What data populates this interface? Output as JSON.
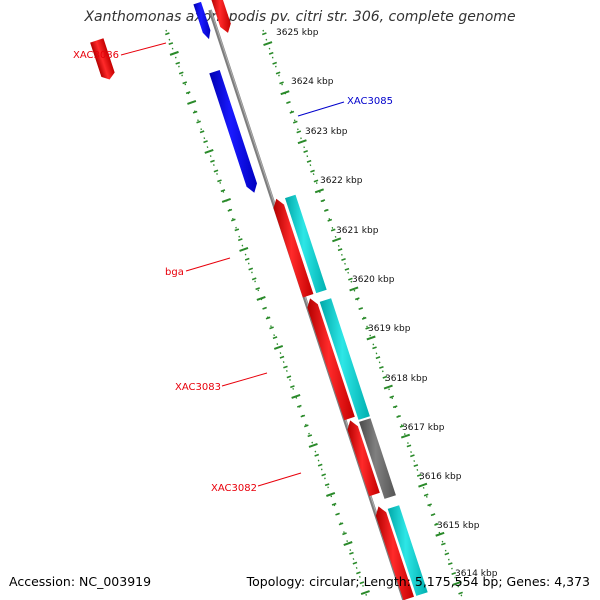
{
  "title": "Xanthomonas axonopodis pv. citri str. 306, complete genome",
  "accession": "Accession: NC_003919",
  "summary": "Topology: circular; Length: 5,175,554 bp; Genes: 4,373",
  "ticks": [
    "3625 kbp",
    "3624 kbp",
    "3623 kbp",
    "3622 kbp",
    "3621 kbp",
    "3620 kbp",
    "3619 kbp",
    "3618 kbp",
    "3617 kbp",
    "3616 kbp",
    "3615 kbp",
    "3614 kbp"
  ],
  "gene_labels": [
    {
      "text": "XAC3086",
      "color": "#e8000b"
    },
    {
      "text": "XAC3085",
      "color": "#0000cc"
    },
    {
      "text": "bga",
      "color": "#e8000b"
    },
    {
      "text": "XAC3083",
      "color": "#e8000b"
    },
    {
      "text": "XAC3082",
      "color": "#e8000b"
    }
  ],
  "colors": {
    "forward": "#ff0000",
    "reverse": "#0000ff",
    "cds": "#00cccc",
    "other": "#666666",
    "backbone": "#8c8c8c",
    "tick": "#2a8a2a"
  }
}
